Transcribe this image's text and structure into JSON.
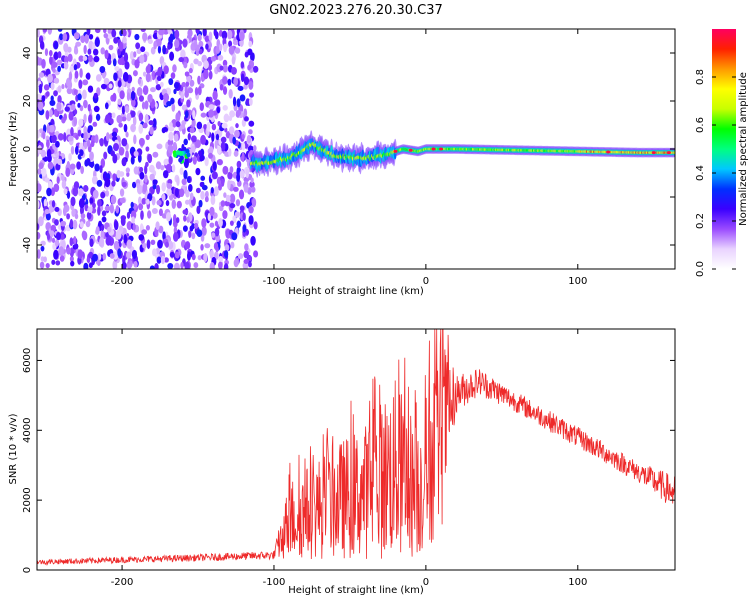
{
  "title": "GN02.2023.276.20.30.C37",
  "chart_data": [
    {
      "type": "heatmap",
      "xlabel": "Height of straight line (km)",
      "ylabel": "Frequency (Hz)",
      "xlim": [
        -256,
        164
      ],
      "ylim": [
        -50,
        50
      ],
      "x_ticks": [
        -200,
        -100,
        0,
        100
      ],
      "y_ticks": [
        -40,
        -20,
        0,
        20,
        40
      ],
      "colorbar": {
        "label": "Normalized spectral amplitude",
        "range": [
          0,
          1
        ],
        "ticks": [
          "0.0",
          "0.2",
          "0.4",
          "0.6",
          "0.8"
        ],
        "colormap": [
          "#ffffff",
          "#e9d3ff",
          "#9a4bff",
          "#3a00ff",
          "#0030ff",
          "#00c8ff",
          "#00ff80",
          "#00ff00",
          "#c8ff00",
          "#ffff00",
          "#ff9900",
          "#ff2000",
          "#ff0060"
        ]
      },
      "noise_region_x": [
        -256,
        -112
      ],
      "ridge": [
        {
          "x": -160,
          "f": -3
        },
        {
          "x": -110,
          "f": -6
        },
        {
          "x": -90,
          "f": -4
        },
        {
          "x": -75,
          "f": 2
        },
        {
          "x": -60,
          "f": -3
        },
        {
          "x": -40,
          "f": -4
        },
        {
          "x": -25,
          "f": -2
        },
        {
          "x": -15,
          "f": 0
        },
        {
          "x": -5,
          "f": -1
        },
        {
          "x": 0,
          "f": 0
        },
        {
          "x": 20,
          "f": 0
        },
        {
          "x": 60,
          "f": -0.5
        },
        {
          "x": 100,
          "f": -1
        },
        {
          "x": 140,
          "f": -1.5
        },
        {
          "x": 164,
          "f": -1.5
        }
      ]
    },
    {
      "type": "line",
      "xlabel": "Height of straight line (km)",
      "ylabel": "SNR (10 * v/v)",
      "xlim": [
        -256,
        164
      ],
      "ylim": [
        0,
        6900
      ],
      "x_ticks": [
        -200,
        -100,
        0,
        100
      ],
      "y_ticks": [
        0,
        2000,
        4000,
        6000
      ],
      "color": "#ee2a2a",
      "envelope": [
        {
          "x": -256,
          "base": 150,
          "top": 300
        },
        {
          "x": -150,
          "base": 250,
          "top": 450
        },
        {
          "x": -100,
          "base": 300,
          "top": 550
        },
        {
          "x": -90,
          "base": 300,
          "top": 2600
        },
        {
          "x": -60,
          "base": 300,
          "top": 3600
        },
        {
          "x": -40,
          "base": 300,
          "top": 4200
        },
        {
          "x": -20,
          "base": 300,
          "top": 5500
        },
        {
          "x": -5,
          "base": 300,
          "top": 4200
        },
        {
          "x": 10,
          "base": 1000,
          "top": 6800
        },
        {
          "x": 20,
          "base": 4500,
          "top": 5600
        },
        {
          "x": 35,
          "base": 5000,
          "top": 5800
        },
        {
          "x": 60,
          "base": 4500,
          "top": 5100
        },
        {
          "x": 100,
          "base": 3500,
          "top": 4100
        },
        {
          "x": 140,
          "base": 2500,
          "top": 3100
        },
        {
          "x": 164,
          "base": 1700,
          "top": 2700
        }
      ]
    }
  ]
}
